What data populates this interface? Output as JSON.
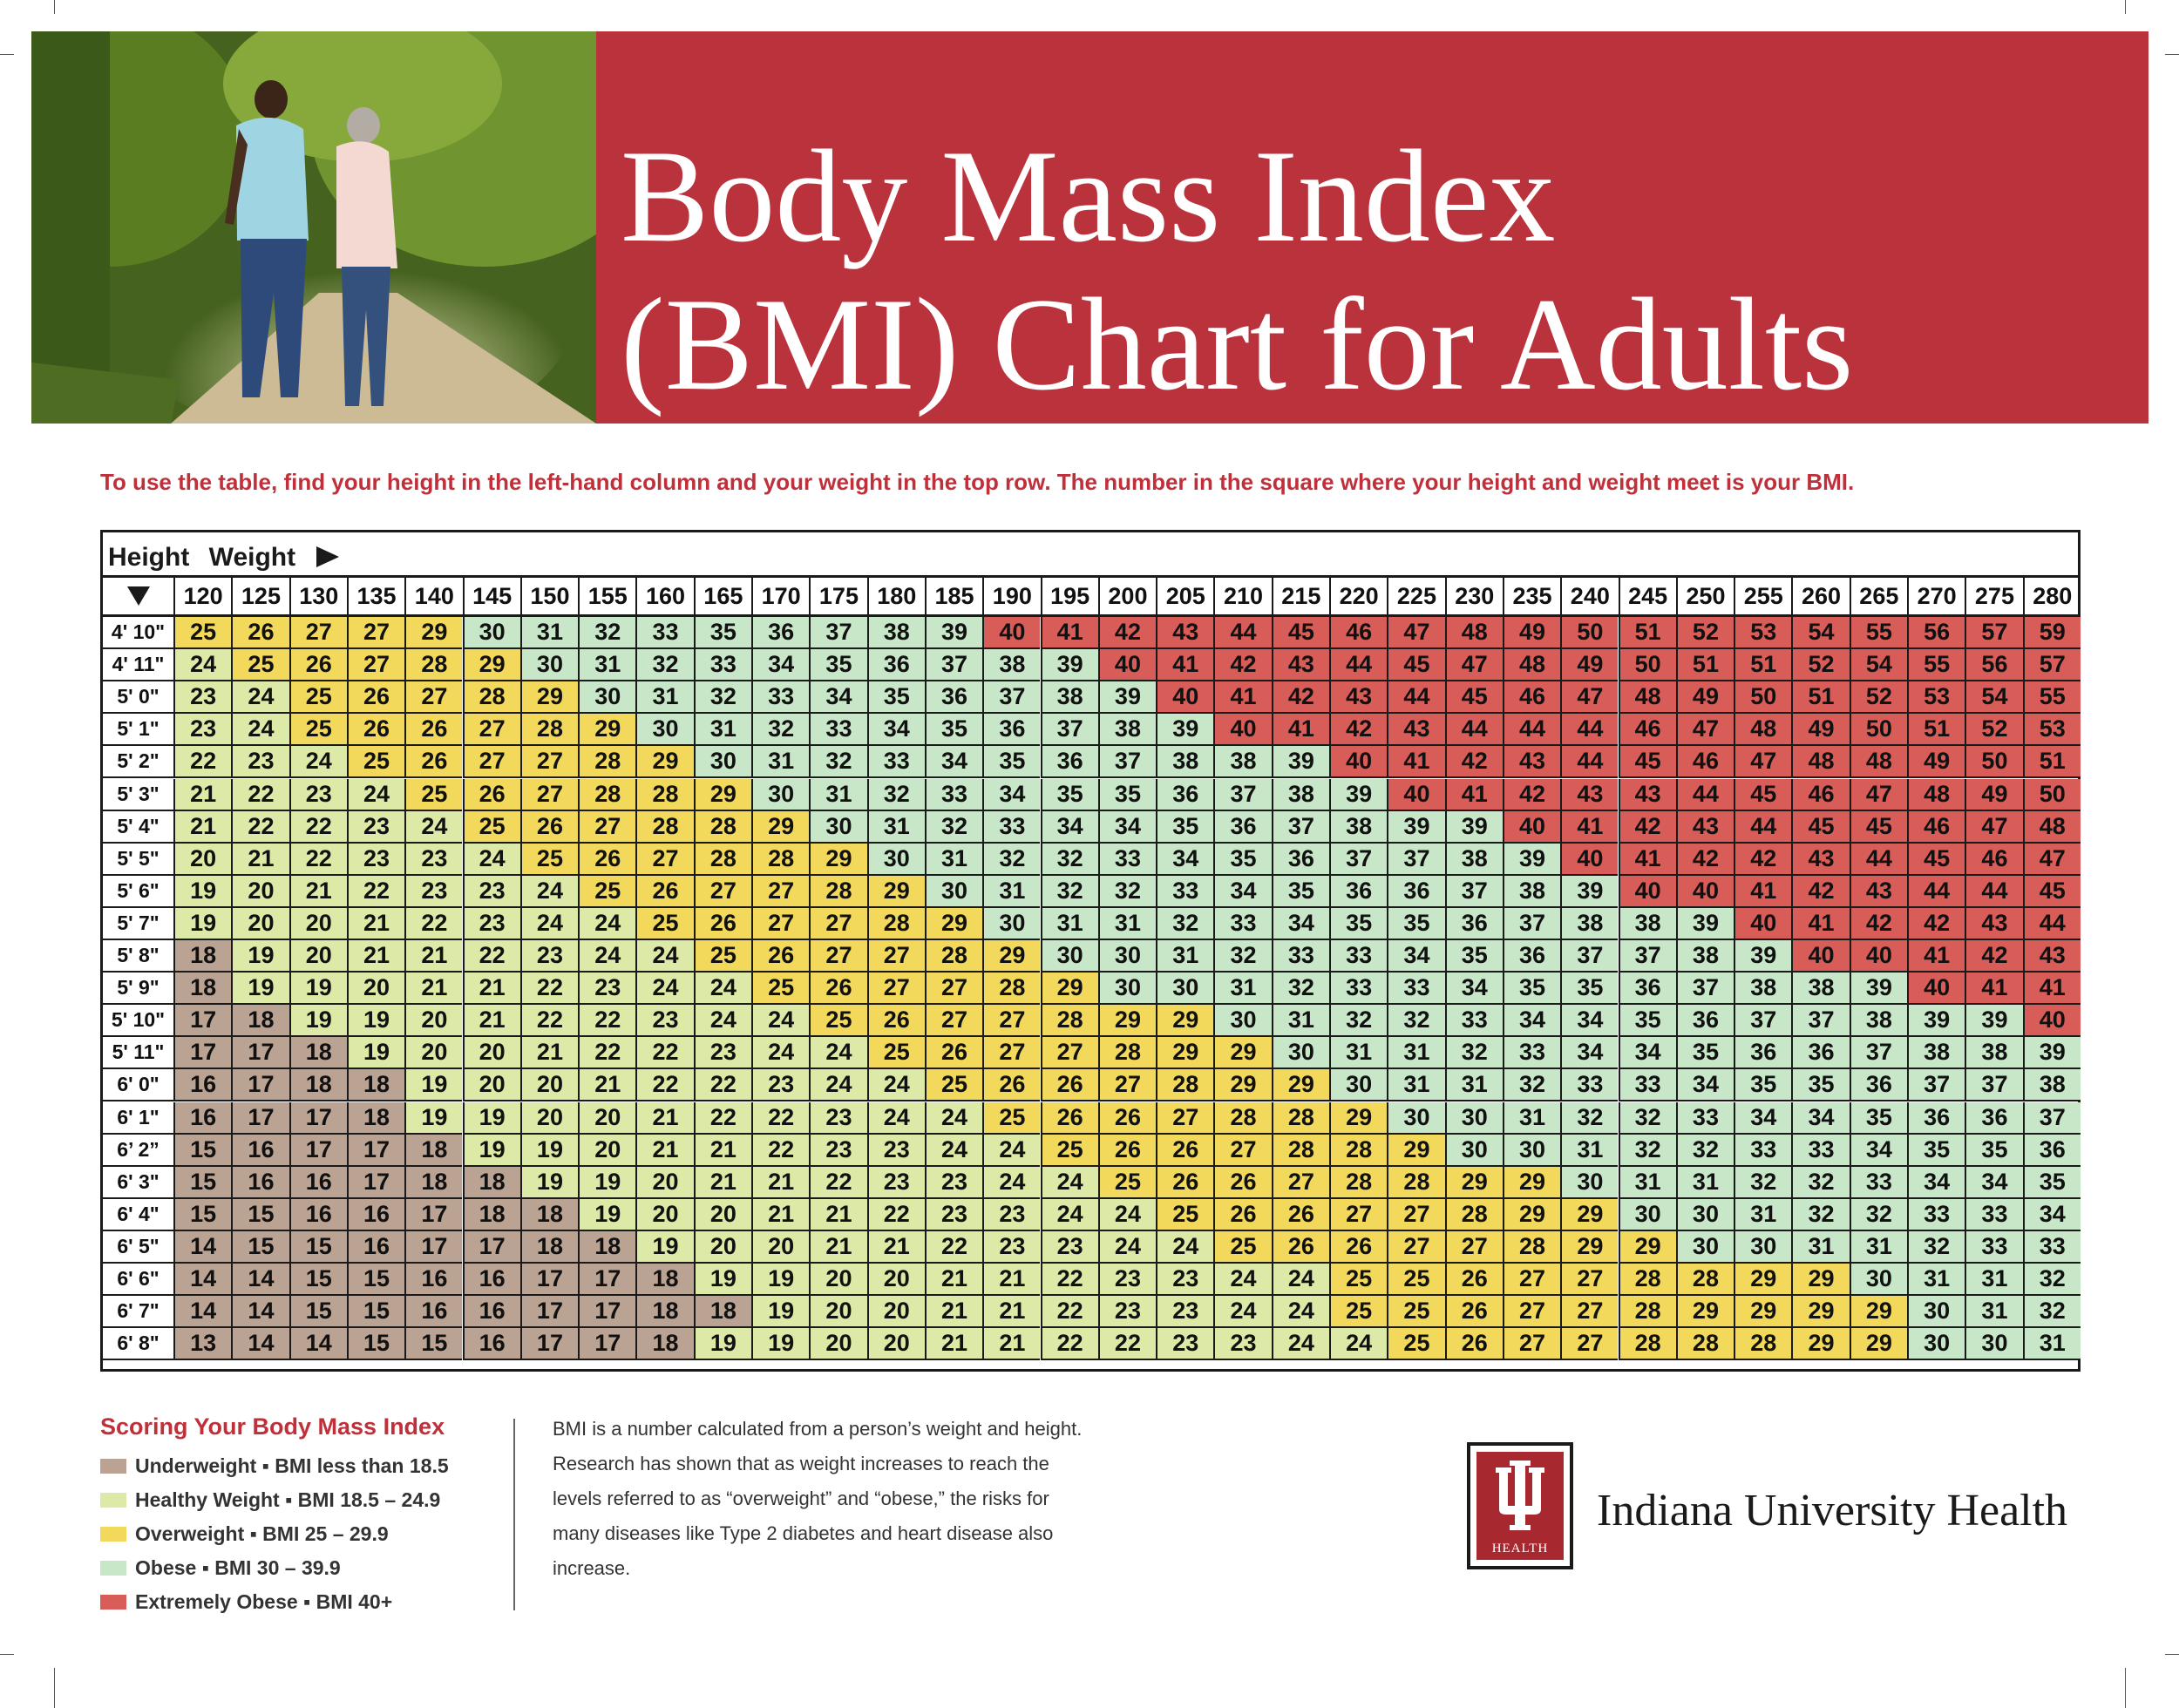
{
  "title_line1": "Body Mass Index",
  "title_line2": "(BMI) Chart for Adults",
  "instructions": "To use the table, find your height in the left-hand column and your weight in the top row. The number in the square where your height and weight meet is your BMI.",
  "table": {
    "height_label": "Height",
    "weight_label": "Weight",
    "weights": [
      "120",
      "125",
      "130",
      "135",
      "140",
      "145",
      "150",
      "155",
      "160",
      "165",
      "170",
      "175",
      "180",
      "185",
      "190",
      "195",
      "200",
      "205",
      "210",
      "215",
      "220",
      "225",
      "230",
      "235",
      "240",
      "245",
      "250",
      "255",
      "260",
      "265",
      "270",
      "275",
      "280"
    ],
    "heights": [
      "4' 10\"",
      "4' 11\"",
      "5' 0\"",
      "5' 1\"",
      "5' 2\"",
      "5' 3\"",
      "5' 4\"",
      "5' 5\"",
      "5' 6\"",
      "5' 7\"",
      "5' 8\"",
      "5' 9\"",
      "5' 10\"",
      "5' 11\"",
      "6' 0\"",
      "6' 1\"",
      "6’ 2”",
      "6' 3\"",
      "6' 4\"",
      "6' 5\"",
      "6' 6\"",
      "6' 7\"",
      "6' 8\""
    ],
    "rows": [
      [
        25,
        26,
        27,
        27,
        29,
        30,
        31,
        32,
        33,
        35,
        36,
        37,
        38,
        39,
        40,
        41,
        42,
        43,
        44,
        45,
        46,
        47,
        48,
        49,
        50,
        51,
        52,
        53,
        54,
        55,
        56,
        57,
        59
      ],
      [
        24,
        25,
        26,
        27,
        28,
        29,
        30,
        31,
        32,
        33,
        34,
        35,
        36,
        37,
        38,
        39,
        40,
        41,
        42,
        43,
        44,
        45,
        47,
        48,
        49,
        50,
        51,
        51,
        52,
        54,
        55,
        56,
        57
      ],
      [
        23,
        24,
        25,
        26,
        27,
        28,
        29,
        30,
        31,
        32,
        33,
        34,
        35,
        36,
        37,
        38,
        39,
        40,
        41,
        42,
        43,
        44,
        45,
        46,
        47,
        48,
        49,
        50,
        51,
        52,
        53,
        54,
        55
      ],
      [
        23,
        24,
        25,
        26,
        26,
        27,
        28,
        29,
        30,
        31,
        32,
        33,
        34,
        35,
        36,
        37,
        38,
        39,
        40,
        41,
        42,
        43,
        44,
        44,
        44,
        46,
        47,
        48,
        49,
        50,
        51,
        52,
        53
      ],
      [
        22,
        23,
        24,
        25,
        26,
        27,
        27,
        28,
        29,
        30,
        31,
        32,
        33,
        34,
        35,
        36,
        37,
        38,
        38,
        39,
        40,
        41,
        42,
        43,
        44,
        45,
        46,
        47,
        48,
        48,
        49,
        50,
        51
      ],
      [
        21,
        22,
        23,
        24,
        25,
        26,
        27,
        28,
        28,
        29,
        30,
        31,
        32,
        33,
        34,
        35,
        35,
        36,
        37,
        38,
        39,
        40,
        41,
        42,
        43,
        43,
        44,
        45,
        46,
        47,
        48,
        49,
        50
      ],
      [
        21,
        22,
        22,
        23,
        24,
        25,
        26,
        27,
        28,
        28,
        29,
        30,
        31,
        32,
        33,
        34,
        34,
        35,
        36,
        37,
        38,
        39,
        39,
        40,
        41,
        42,
        43,
        44,
        45,
        45,
        46,
        47,
        48
      ],
      [
        20,
        21,
        22,
        23,
        23,
        24,
        25,
        26,
        27,
        28,
        28,
        29,
        30,
        31,
        32,
        32,
        33,
        34,
        35,
        36,
        37,
        37,
        38,
        39,
        40,
        41,
        42,
        42,
        43,
        44,
        45,
        46,
        47
      ],
      [
        19,
        20,
        21,
        22,
        23,
        23,
        24,
        25,
        26,
        27,
        27,
        28,
        29,
        30,
        31,
        32,
        32,
        33,
        34,
        35,
        36,
        36,
        37,
        38,
        39,
        40,
        40,
        41,
        42,
        43,
        44,
        44,
        45
      ],
      [
        19,
        20,
        20,
        21,
        22,
        23,
        24,
        24,
        25,
        26,
        27,
        27,
        28,
        29,
        30,
        31,
        31,
        32,
        33,
        34,
        35,
        35,
        36,
        37,
        38,
        38,
        39,
        40,
        41,
        42,
        42,
        43,
        44
      ],
      [
        18,
        19,
        20,
        21,
        21,
        22,
        23,
        24,
        24,
        25,
        26,
        27,
        27,
        28,
        29,
        30,
        30,
        31,
        32,
        33,
        33,
        34,
        35,
        36,
        37,
        37,
        38,
        39,
        40,
        40,
        41,
        42,
        43
      ],
      [
        18,
        19,
        19,
        20,
        21,
        21,
        22,
        23,
        24,
        24,
        25,
        26,
        27,
        27,
        28,
        29,
        30,
        30,
        31,
        32,
        33,
        33,
        34,
        35,
        35,
        36,
        37,
        38,
        38,
        39,
        40,
        41,
        41
      ],
      [
        17,
        18,
        19,
        19,
        20,
        21,
        22,
        22,
        23,
        24,
        24,
        25,
        26,
        27,
        27,
        28,
        29,
        29,
        30,
        31,
        32,
        32,
        33,
        34,
        34,
        35,
        36,
        37,
        37,
        38,
        39,
        39,
        40
      ],
      [
        17,
        17,
        18,
        19,
        20,
        20,
        21,
        22,
        22,
        23,
        24,
        24,
        25,
        26,
        27,
        27,
        28,
        29,
        29,
        30,
        31,
        31,
        32,
        33,
        34,
        34,
        35,
        36,
        36,
        37,
        38,
        38,
        39
      ],
      [
        16,
        17,
        18,
        18,
        19,
        20,
        20,
        21,
        22,
        22,
        23,
        24,
        24,
        25,
        26,
        26,
        27,
        28,
        29,
        29,
        30,
        31,
        31,
        32,
        33,
        33,
        34,
        35,
        35,
        36,
        37,
        37,
        38
      ],
      [
        16,
        17,
        17,
        18,
        19,
        19,
        20,
        20,
        21,
        22,
        22,
        23,
        24,
        24,
        25,
        26,
        26,
        27,
        28,
        28,
        29,
        30,
        30,
        31,
        32,
        32,
        33,
        34,
        34,
        35,
        36,
        36,
        37
      ],
      [
        15,
        16,
        17,
        17,
        18,
        19,
        19,
        20,
        21,
        21,
        22,
        23,
        23,
        24,
        24,
        25,
        26,
        26,
        27,
        28,
        28,
        29,
        30,
        30,
        31,
        32,
        32,
        33,
        33,
        34,
        35,
        35,
        36
      ],
      [
        15,
        16,
        16,
        17,
        18,
        18,
        19,
        19,
        20,
        21,
        21,
        22,
        23,
        23,
        24,
        24,
        25,
        26,
        26,
        27,
        28,
        28,
        29,
        29,
        30,
        31,
        31,
        32,
        32,
        33,
        34,
        34,
        35
      ],
      [
        15,
        15,
        16,
        16,
        17,
        18,
        18,
        19,
        20,
        20,
        21,
        21,
        22,
        23,
        23,
        24,
        24,
        25,
        26,
        26,
        27,
        27,
        28,
        29,
        29,
        30,
        30,
        31,
        32,
        32,
        33,
        33,
        34
      ],
      [
        14,
        15,
        15,
        16,
        17,
        17,
        18,
        18,
        19,
        20,
        20,
        21,
        21,
        22,
        23,
        23,
        24,
        24,
        25,
        26,
        26,
        27,
        27,
        28,
        29,
        29,
        30,
        30,
        31,
        31,
        32,
        33,
        33
      ],
      [
        14,
        14,
        15,
        15,
        16,
        16,
        17,
        17,
        18,
        19,
        19,
        20,
        20,
        21,
        21,
        22,
        23,
        23,
        24,
        24,
        25,
        25,
        26,
        27,
        27,
        28,
        28,
        29,
        29,
        30,
        31,
        31,
        32
      ],
      [
        14,
        14,
        15,
        15,
        16,
        16,
        17,
        17,
        18,
        18,
        19,
        20,
        20,
        21,
        21,
        22,
        23,
        23,
        24,
        24,
        25,
        25,
        26,
        27,
        27,
        28,
        29,
        29,
        29,
        29,
        30,
        31,
        32
      ],
      [
        13,
        14,
        14,
        15,
        15,
        16,
        17,
        17,
        18,
        19,
        19,
        20,
        20,
        21,
        21,
        22,
        22,
        23,
        23,
        24,
        24,
        25,
        26,
        27,
        27,
        28,
        28,
        28,
        29,
        29,
        30,
        30,
        31
      ]
    ]
  },
  "category_colors": {
    "underweight": "#bba393",
    "healthy": "#dde9a6",
    "overweight": "#f2d95c",
    "obese": "#c8e6c8",
    "extremely_obese": "#d85c57"
  },
  "legend": {
    "title": "Scoring Your Body Mass Index",
    "items": [
      {
        "label": "Underweight ▪ BMI less than 18.5",
        "color": "#bba393"
      },
      {
        "label": "Healthy Weight ▪ BMI 18.5 – 24.9",
        "color": "#dde9a6"
      },
      {
        "label": "Overweight ▪ BMI 25 – 29.9",
        "color": "#f2d95c"
      },
      {
        "label": "Obese ▪ BMI 30 – 39.9",
        "color": "#c8e6c8"
      },
      {
        "label": "Extremely Obese ▪ BMI 40+",
        "color": "#d85c57"
      }
    ]
  },
  "description": "BMI is a number calculated from a person’s weight and height. Research has shown that as weight increases to reach the levels referred to as “overweight” and “obese,” the risks for many diseases like Type 2 diabetes and heart disease also increase.",
  "brand": {
    "name": "Indiana University Health",
    "logo_text": "HEALTH",
    "color": "#a8282f"
  },
  "photo_icon": "couple-walking-photo"
}
